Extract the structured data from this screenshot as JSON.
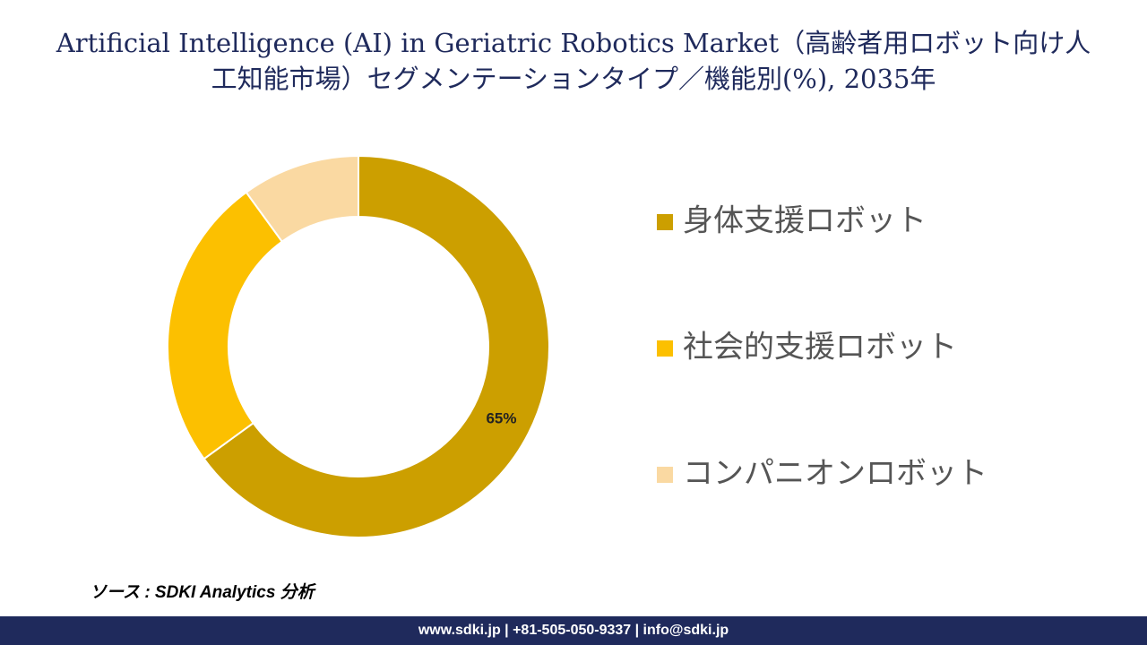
{
  "chart_data": {
    "type": "donut",
    "title": "Artificial Intelligence (AI) in Geriatric Robotics Market（高齢者用ロボット向け人工知能市場）セグメンテーションタイプ／機能別(%), 2035年",
    "categories": [
      "身体支援ロボット",
      "社会的支援ロボット",
      "コンパニオンロボット"
    ],
    "values": [
      65,
      25,
      10
    ],
    "value_labels": [
      "65%",
      null,
      null
    ],
    "colors": [
      "#cc9f00",
      "#fcc000",
      "#fad9a2"
    ],
    "legend": "right"
  },
  "source": "ソース : SDKI Analytics 分析",
  "footer": "www.sdki.jp | +81-505-050-9337 | info@sdki.jp"
}
